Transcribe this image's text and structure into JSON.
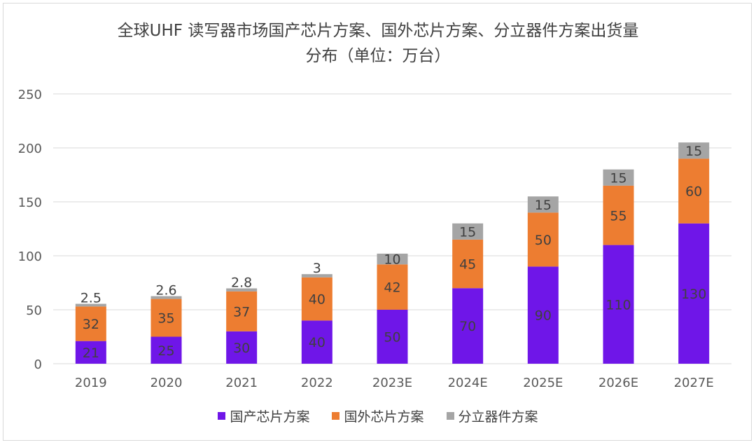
{
  "chart_data": {
    "type": "bar",
    "stacked": true,
    "title_lines": [
      "全球UHF 读写器市场国产芯片方案、国外芯片方案、分立器件方案出货量",
      "分布（单位：万台）"
    ],
    "categories": [
      "2019",
      "2020",
      "2021",
      "2022",
      "2023E",
      "2024E",
      "2025E",
      "2026E",
      "2027E"
    ],
    "series": [
      {
        "name": "国产芯片方案",
        "color": "#6f16e8",
        "values": [
          21,
          25,
          30,
          40,
          50,
          70,
          90,
          110,
          130
        ],
        "labels": [
          "21",
          "25",
          "30",
          "40",
          "50",
          "70",
          "90",
          "110",
          "130"
        ]
      },
      {
        "name": "国外芯片方案",
        "color": "#ed7d31",
        "values": [
          32,
          35,
          37,
          40,
          42,
          45,
          50,
          55,
          60
        ],
        "labels": [
          "32",
          "35",
          "37",
          "40",
          "42",
          "45",
          "50",
          "55",
          "60"
        ]
      },
      {
        "name": "分立器件方案",
        "color": "#a5a5a5",
        "values": [
          2.5,
          2.6,
          2.8,
          3,
          10,
          15,
          15,
          15,
          15
        ],
        "labels": [
          "2.5",
          "2.6",
          "2.8",
          "3",
          "10",
          "15",
          "15",
          "15",
          "15"
        ]
      }
    ],
    "y_ticks": [
      "0",
      "50",
      "100",
      "150",
      "200",
      "250"
    ],
    "ylim": [
      0,
      250
    ],
    "grid": true,
    "legend_position": "bottom"
  }
}
